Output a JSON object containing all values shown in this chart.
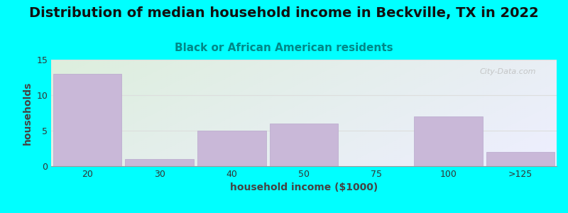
{
  "title": "Distribution of median household income in Beckville, TX in 2022",
  "subtitle": "Black or African American residents",
  "xlabel": "household income ($1000)",
  "ylabel": "households",
  "background_color": "#00FFFF",
  "bar_color": "#c9b8d8",
  "bar_edge_color": "#b8a8cc",
  "categories": [
    "20",
    "30",
    "40",
    "50",
    "75",
    "100",
    ">125"
  ],
  "values": [
    13,
    1,
    5,
    6,
    0,
    7,
    2
  ],
  "ylim": [
    0,
    15
  ],
  "yticks": [
    0,
    5,
    10,
    15
  ],
  "watermark": "City-Data.com",
  "title_fontsize": 14,
  "subtitle_fontsize": 11,
  "axis_label_fontsize": 10,
  "tick_fontsize": 9,
  "title_color": "#111111",
  "subtitle_color": "#008888",
  "label_color": "#444444",
  "grid_color": "#dddddd",
  "bg_top_left": "#ddeedd",
  "bg_bottom_right": "#eeeeff"
}
